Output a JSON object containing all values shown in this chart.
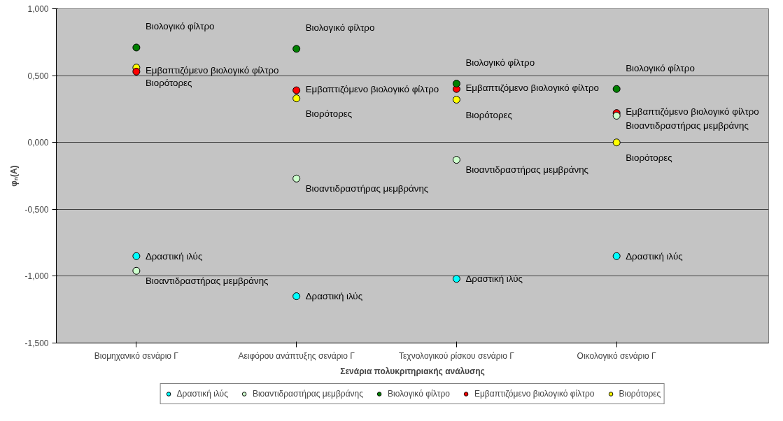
{
  "chart_data": {
    "type": "scatter",
    "xlabel": "Σενάρια πολυκριτηριακής ανάλυσης",
    "ylabel": "φₙ(A)",
    "categories": [
      "Βιομηχανικό σενάριο Γ",
      "Αειφόρου ανάπτυξης σενάριο Γ",
      "Τεχνολογικού ρίσκου σενάριο Γ",
      "Οικολογικό σενάριο Γ"
    ],
    "series": [
      {
        "name": "Δραστική ιλύς",
        "color": "#00ffff",
        "values": [
          -0.85,
          -1.15,
          -1.02,
          -0.85
        ]
      },
      {
        "name": "Βιοαντιδραστήρας μεμβράνης",
        "color": "#ccffcc",
        "values": [
          -0.96,
          -0.27,
          -0.13,
          0.2
        ]
      },
      {
        "name": "Βιολογικό φίλτρο",
        "color": "#008000",
        "values": [
          0.71,
          0.7,
          0.44,
          0.4
        ]
      },
      {
        "name": "Εμβαπτιζόμενο βιολογικό φίλτρο",
        "color": "#ff0000",
        "values": [
          0.53,
          0.39,
          0.4,
          0.22
        ]
      },
      {
        "name": "Βιορότορες",
        "color": "#ffff00",
        "values": [
          0.56,
          0.33,
          0.32,
          0.0
        ]
      }
    ],
    "ylim": [
      -1.5,
      1.0
    ],
    "yticks": [
      {
        "value": -1.5,
        "label": "-1,500"
      },
      {
        "value": -1.0,
        "label": "-1,000"
      },
      {
        "value": -0.5,
        "label": "-0,500"
      },
      {
        "value": 0.0,
        "label": "0,000"
      },
      {
        "value": 0.5,
        "label": "0,500"
      },
      {
        "value": 1.0,
        "label": "1,000"
      }
    ],
    "grid": "y",
    "legend": "bottom"
  }
}
